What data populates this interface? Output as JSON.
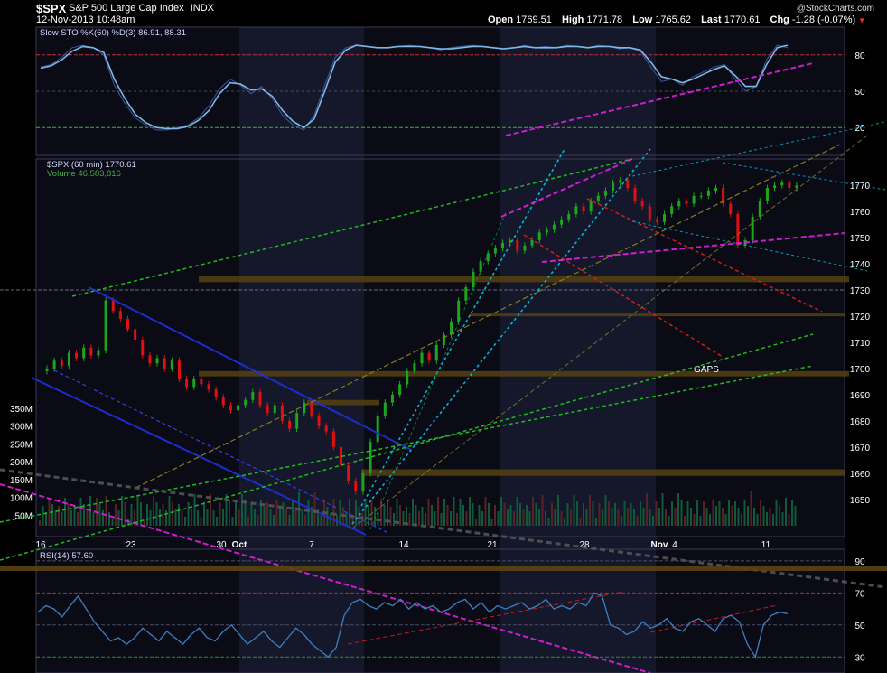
{
  "header": {
    "symbol": "$SPX",
    "description": "S&P 500 Large Cap Index",
    "exchange": "INDX",
    "datetime": "12-Nov-2013 10:48am",
    "watermark": "@StockCharts.com",
    "quote": [
      {
        "label": "Open",
        "value": "1769.51"
      },
      {
        "label": "High",
        "value": "1771.78"
      },
      {
        "label": "Low",
        "value": "1765.62"
      },
      {
        "label": "Last",
        "value": "1770.61"
      },
      {
        "label": "Chg",
        "value": "-1.28 (-0.07%)"
      }
    ],
    "chg_color": "#ff3030"
  },
  "colors": {
    "background": "#000000",
    "panel": "#0b0b16",
    "shade": "#15172a",
    "grid": "#2a2a44",
    "up_candle": "#1ea51e",
    "down_candle": "#e01010",
    "stoch": "#7fb8e6",
    "rsi": "#3d7fbf",
    "volume_up": "#0e5a3a",
    "volume_down": "#5a2222",
    "gap": "#5a4410"
  },
  "chart_data": [
    {
      "type": "line",
      "name": "stochastic",
      "legend": "Slow STO %K(60) %D(3) 86.91, 88.31",
      "ylim": [
        0,
        100
      ],
      "y_ticks": [
        "80",
        "50",
        "20"
      ],
      "series": [
        {
          "name": "%K",
          "values": [
            70,
            72,
            78,
            86,
            88,
            86,
            80,
            55,
            40,
            28,
            22,
            18,
            18,
            20,
            22,
            28,
            38,
            52,
            60,
            55,
            48,
            54,
            44,
            30,
            22,
            18,
            30,
            55,
            78,
            86,
            88,
            87,
            86,
            86,
            87,
            88,
            87,
            86,
            84,
            86,
            87,
            88,
            87,
            86,
            85,
            86,
            88,
            86,
            87,
            86,
            88,
            87,
            86,
            88,
            87,
            85,
            86,
            83,
            70,
            58,
            60,
            55,
            62,
            66,
            70,
            72,
            60,
            50,
            54,
            76,
            88,
            86
          ],
          "close": "86.91"
        },
        {
          "name": "%D",
          "values": [
            69,
            71,
            76,
            83,
            87,
            86,
            82,
            60,
            44,
            31,
            24,
            20,
            19,
            19,
            21,
            26,
            34,
            48,
            57,
            56,
            51,
            52,
            46,
            34,
            25,
            20,
            27,
            50,
            74,
            84,
            88,
            87,
            86,
            86,
            87,
            87,
            87,
            86,
            85,
            85,
            86,
            87,
            87,
            86,
            85,
            86,
            87,
            86,
            86,
            86,
            87,
            87,
            86,
            87,
            87,
            86,
            86,
            84,
            74,
            62,
            60,
            57,
            60,
            64,
            68,
            71,
            63,
            54,
            54,
            72,
            86,
            88
          ],
          "close": "88.31"
        }
      ]
    },
    {
      "type": "candlestick",
      "name": "price",
      "legend_price": "$SPX (60 min) 1770.61",
      "legend_volume": "Volume 46,583,816",
      "ylim": [
        1642,
        1778
      ],
      "y_ticks": [
        "1770",
        "1760",
        "1750",
        "1740",
        "1730",
        "1720",
        "1710",
        "1700",
        "1690",
        "1680",
        "1670",
        "1660",
        "1650"
      ],
      "volume_ticks": [
        "350M",
        "300M",
        "250M",
        "200M",
        "150M",
        "100M",
        "50M"
      ],
      "x_ticks": [
        "16",
        "23",
        "30",
        "Oct",
        "7",
        "14",
        "21",
        "28",
        "Nov",
        "4",
        "11"
      ],
      "annotation": "GAPS",
      "closes": [
        1700,
        1703,
        1701,
        1706,
        1704,
        1708,
        1705,
        1707,
        1726,
        1722,
        1719,
        1715,
        1711,
        1705,
        1702,
        1704,
        1700,
        1703,
        1696,
        1693,
        1696,
        1694,
        1692,
        1689,
        1686,
        1684,
        1686,
        1688,
        1691,
        1686,
        1683,
        1686,
        1680,
        1677,
        1683,
        1687,
        1682,
        1678,
        1676,
        1670,
        1663,
        1657,
        1653,
        1660,
        1672,
        1682,
        1687,
        1690,
        1694,
        1699,
        1702,
        1706,
        1703,
        1709,
        1713,
        1718,
        1726,
        1731,
        1737,
        1741,
        1744,
        1746,
        1748,
        1749,
        1745,
        1747,
        1749,
        1752,
        1753,
        1755,
        1757,
        1759,
        1762,
        1760,
        1764,
        1766,
        1768,
        1771,
        1772,
        1769,
        1764,
        1762,
        1757,
        1756,
        1759,
        1762,
        1764,
        1763,
        1766,
        1766,
        1768,
        1769,
        1763,
        1759,
        1747,
        1749,
        1758,
        1764,
        1769,
        1770,
        1771,
        1769,
        1770
      ]
    },
    {
      "type": "line",
      "name": "rsi",
      "legend": "RSI(14) 57.60",
      "ylim": [
        20,
        95
      ],
      "y_ticks": [
        "90",
        "70",
        "50",
        "30"
      ],
      "values": [
        58,
        62,
        60,
        55,
        62,
        68,
        60,
        52,
        46,
        40,
        42,
        38,
        42,
        48,
        44,
        40,
        46,
        42,
        38,
        44,
        48,
        42,
        40,
        46,
        50,
        44,
        38,
        42,
        46,
        40,
        36,
        42,
        48,
        44,
        38,
        34,
        30,
        36,
        56,
        64,
        66,
        62,
        60,
        64,
        62,
        66,
        60,
        64,
        60,
        62,
        58,
        60,
        64,
        66,
        60,
        64,
        58,
        62,
        60,
        62,
        64,
        60,
        62,
        66,
        60,
        62,
        60,
        64,
        62,
        70,
        68,
        50,
        48,
        44,
        46,
        52,
        48,
        50,
        54,
        48,
        46,
        52,
        54,
        50,
        46,
        54,
        56,
        52,
        38,
        30,
        50,
        56,
        58,
        57
      ]
    }
  ]
}
